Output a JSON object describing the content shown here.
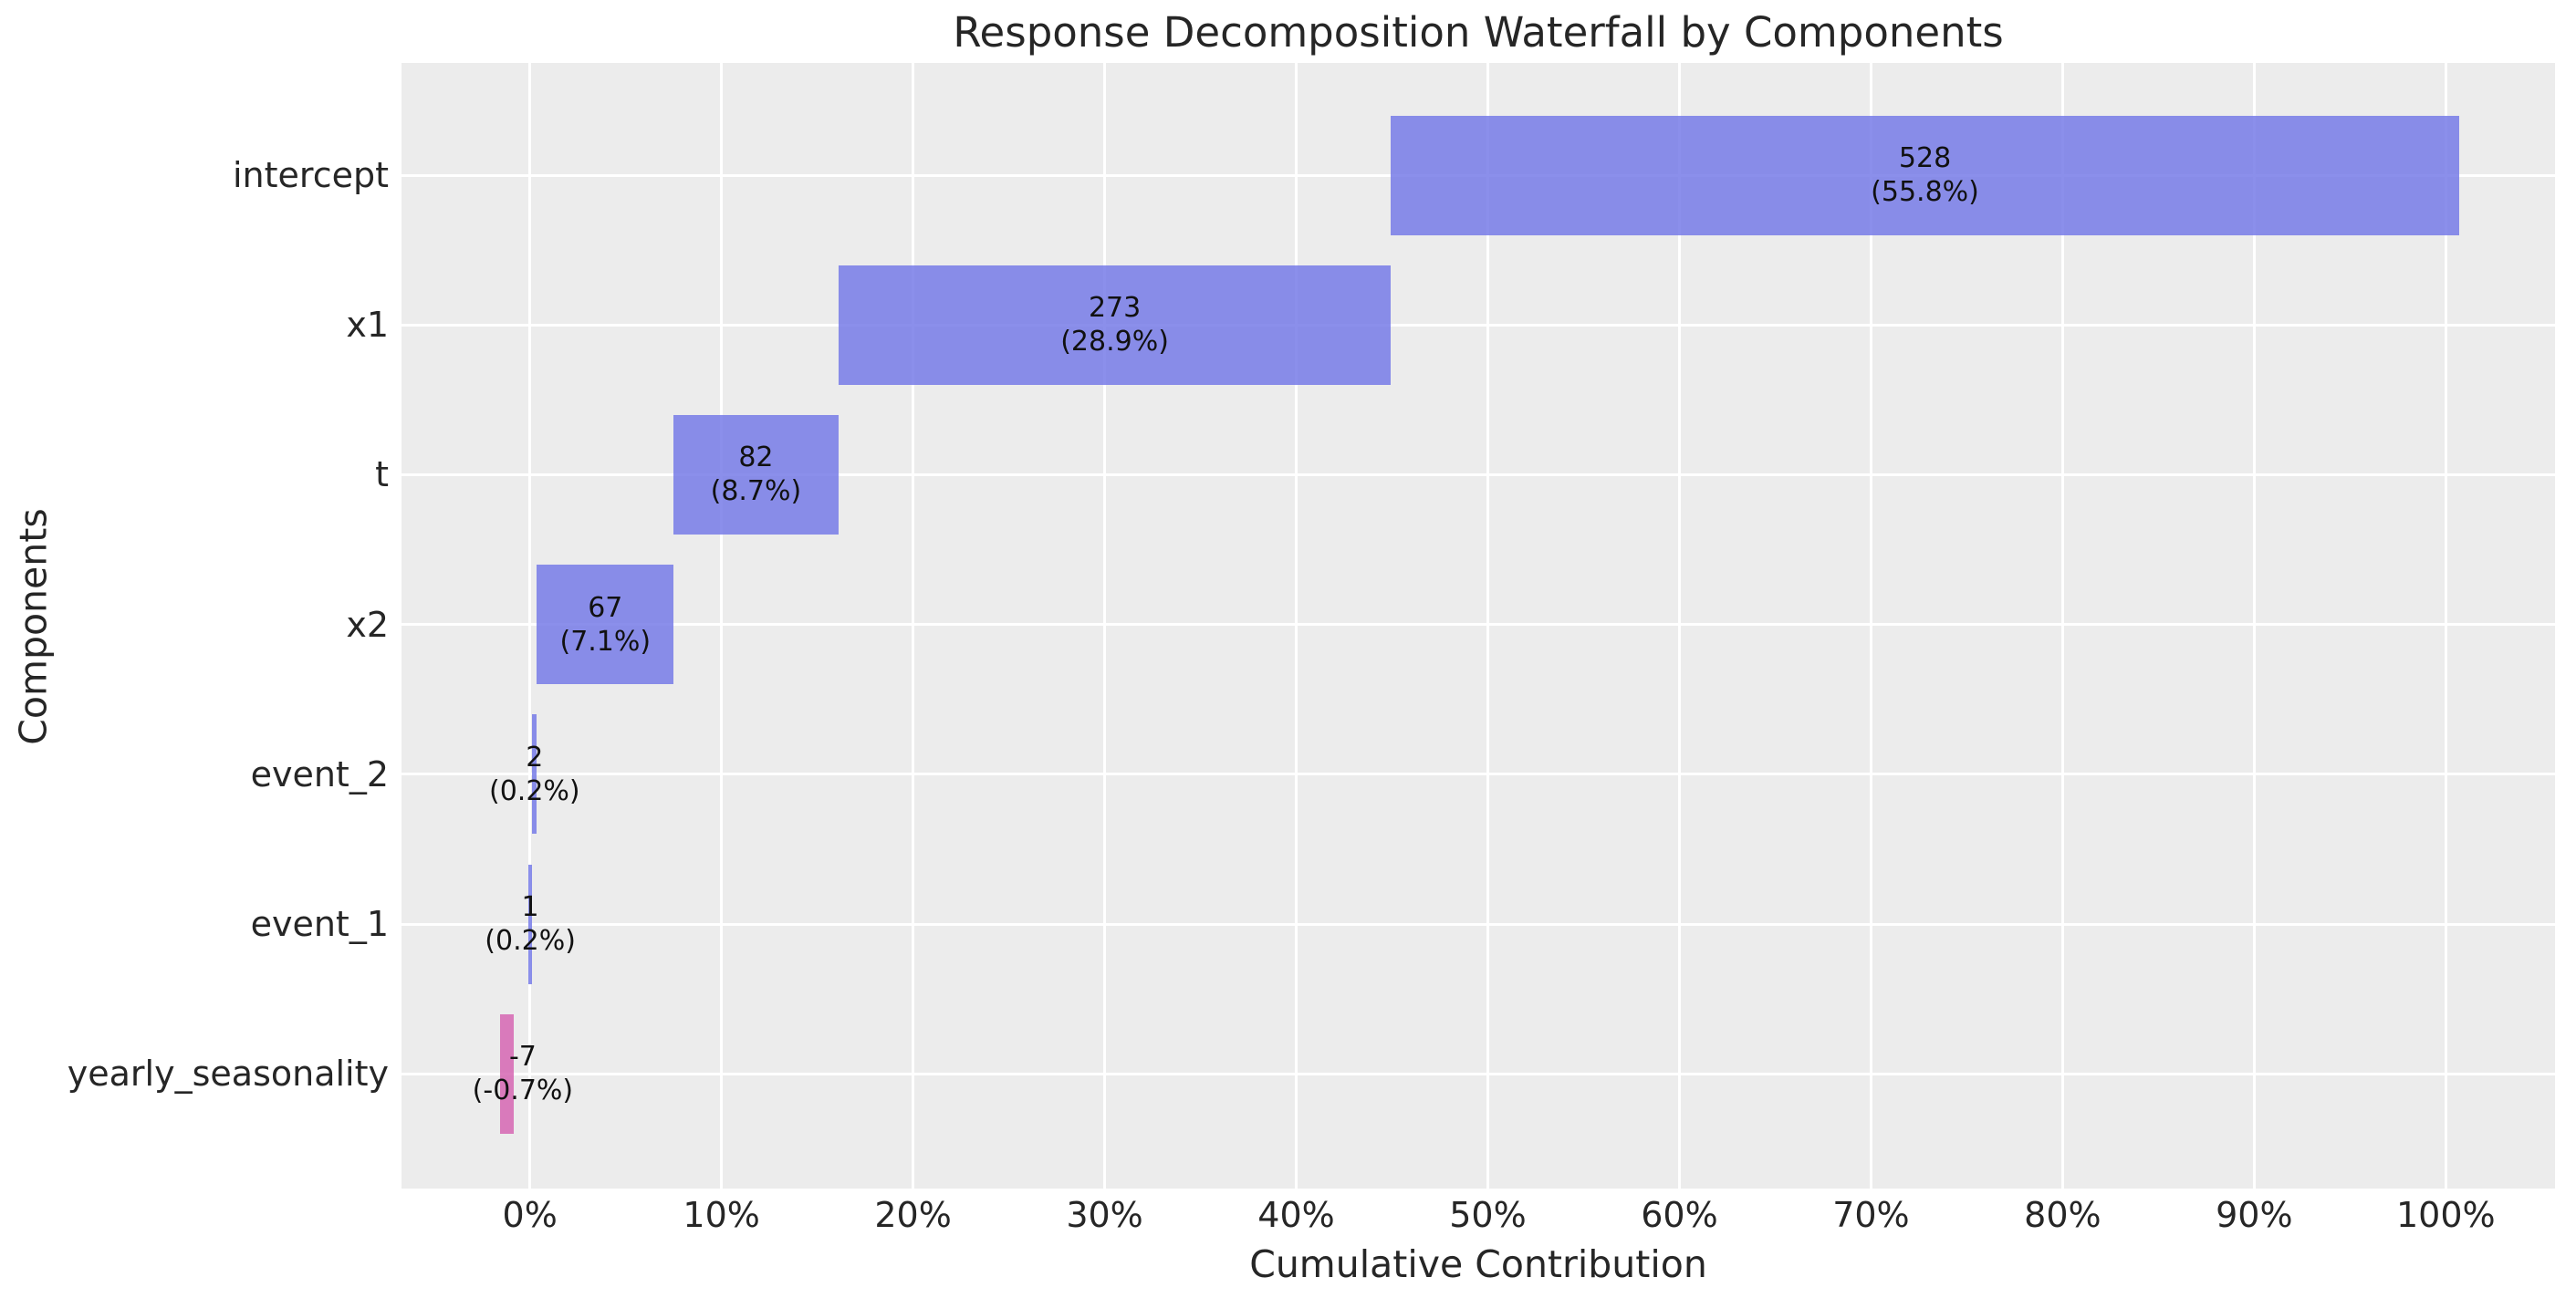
{
  "chart_data": {
    "type": "bar",
    "variant": "waterfall",
    "orientation": "horizontal",
    "title": "Response Decomposition Waterfall by Components",
    "xlabel": "Cumulative Contribution",
    "ylabel": "Components",
    "grid": true,
    "legend": false,
    "xlim_pct": [
      -6.7,
      105.7
    ],
    "x_ticks": [
      {
        "value": 0,
        "label": "0%"
      },
      {
        "value": 10,
        "label": "10%"
      },
      {
        "value": 20,
        "label": "20%"
      },
      {
        "value": 30,
        "label": "30%"
      },
      {
        "value": 40,
        "label": "40%"
      },
      {
        "value": 50,
        "label": "50%"
      },
      {
        "value": 60,
        "label": "60%"
      },
      {
        "value": 70,
        "label": "70%"
      },
      {
        "value": 80,
        "label": "80%"
      },
      {
        "value": 90,
        "label": "90%"
      },
      {
        "value": 100,
        "label": "100%"
      }
    ],
    "categories": [
      "intercept",
      "x1",
      "t",
      "x2",
      "event_2",
      "event_1",
      "yearly_seasonality"
    ],
    "components": [
      {
        "name": "intercept",
        "value": 528,
        "pct": 55.8,
        "value_label": "528",
        "pct_label": "(55.8%)",
        "span_pct": [
          44.95,
          100.68
        ]
      },
      {
        "name": "x1",
        "value": 273,
        "pct": 28.9,
        "value_label": "273",
        "pct_label": "(28.9%)",
        "span_pct": [
          16.1,
          44.95
        ]
      },
      {
        "name": "t",
        "value": 82,
        "pct": 8.7,
        "value_label": "82",
        "pct_label": "(8.7%)",
        "span_pct": [
          7.5,
          16.1
        ]
      },
      {
        "name": "x2",
        "value": 67,
        "pct": 7.1,
        "value_label": "67",
        "pct_label": "(7.1%)",
        "span_pct": [
          0.37,
          7.5
        ]
      },
      {
        "name": "event_2",
        "value": 2,
        "pct": 0.2,
        "value_label": "2",
        "pct_label": "(0.2%)",
        "span_pct": [
          0.12,
          0.37
        ]
      },
      {
        "name": "event_1",
        "value": 1,
        "pct": 0.2,
        "value_label": "1",
        "pct_label": "(0.2%)",
        "span_pct": [
          -0.08,
          0.12
        ]
      },
      {
        "name": "yearly_seasonality",
        "value": -7,
        "pct": -0.7,
        "value_label": "-7",
        "pct_label": "(-0.7%)",
        "span_pct": [
          -1.55,
          -0.83
        ],
        "label_x_pct": -0.37
      }
    ],
    "colors": {
      "positive_bar": "#7276e7",
      "negative_bar": "#d460b0",
      "bar_alpha": 0.82,
      "plot_background": "#ececec",
      "gridline": "#ffffff",
      "text": "#262626"
    }
  }
}
